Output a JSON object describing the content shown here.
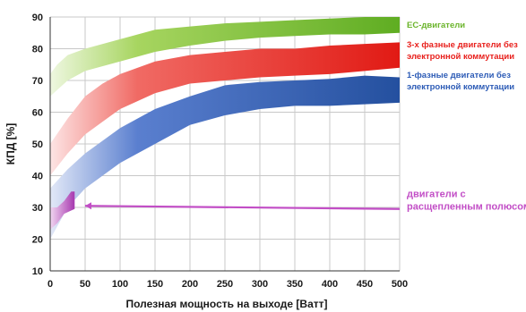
{
  "chart_data": {
    "type": "area",
    "xlabel": "Полезная мощность на выходе [Ватт]",
    "ylabel": "КПД [%]",
    "xlim": [
      0,
      500
    ],
    "ylim": [
      10,
      90
    ],
    "x_ticks": [
      0,
      50,
      100,
      150,
      200,
      250,
      300,
      350,
      400,
      450,
      500
    ],
    "y_ticks": [
      10,
      20,
      30,
      40,
      50,
      60,
      70,
      80,
      90
    ],
    "grid": true,
    "legend_position": "right",
    "series": [
      {
        "name": "EC-двигатели",
        "labels": [
          "EC-двигатели"
        ],
        "color": "#6ab42a",
        "upper": [
          [
            0,
            72
          ],
          [
            10,
            75
          ],
          [
            25,
            78
          ],
          [
            50,
            80
          ],
          [
            100,
            83
          ],
          [
            150,
            86
          ],
          [
            200,
            87
          ],
          [
            250,
            88
          ],
          [
            300,
            88.5
          ],
          [
            350,
            89
          ],
          [
            400,
            89.5
          ],
          [
            450,
            90
          ],
          [
            500,
            90
          ]
        ],
        "lower": [
          [
            0,
            65
          ],
          [
            10,
            67
          ],
          [
            25,
            70
          ],
          [
            50,
            73
          ],
          [
            100,
            76
          ],
          [
            150,
            79
          ],
          [
            200,
            81
          ],
          [
            250,
            82.5
          ],
          [
            300,
            83.5
          ],
          [
            350,
            84
          ],
          [
            400,
            84.5
          ],
          [
            450,
            84.5
          ],
          [
            500,
            85
          ]
        ]
      },
      {
        "name": "3-х фазные двигатели без электронной коммутации",
        "labels": [
          "3-х фазные двигатели без",
          "электронной коммутации"
        ],
        "color": "#e8201c",
        "upper": [
          [
            0,
            50
          ],
          [
            25,
            58
          ],
          [
            50,
            65
          ],
          [
            75,
            69
          ],
          [
            100,
            72
          ],
          [
            150,
            76
          ],
          [
            200,
            78
          ],
          [
            250,
            79
          ],
          [
            300,
            80
          ],
          [
            350,
            80
          ],
          [
            400,
            81
          ],
          [
            450,
            81.5
          ],
          [
            500,
            82
          ]
        ],
        "lower": [
          [
            0,
            40
          ],
          [
            25,
            47
          ],
          [
            50,
            53
          ],
          [
            75,
            57
          ],
          [
            100,
            61
          ],
          [
            150,
            66
          ],
          [
            200,
            69
          ],
          [
            250,
            70
          ],
          [
            300,
            71
          ],
          [
            350,
            71.5
          ],
          [
            400,
            72
          ],
          [
            450,
            73
          ],
          [
            500,
            74
          ]
        ]
      },
      {
        "name": "1-фазные двигатели без электронной коммутации",
        "labels": [
          "1-фазные двигатели без",
          "электронной коммутации"
        ],
        "color": "#2c5bb6",
        "upper": [
          [
            0,
            36
          ],
          [
            25,
            42
          ],
          [
            50,
            47
          ],
          [
            100,
            55
          ],
          [
            150,
            61
          ],
          [
            200,
            65
          ],
          [
            250,
            68.5
          ],
          [
            300,
            69.5
          ],
          [
            350,
            70
          ],
          [
            400,
            70.5
          ],
          [
            450,
            71.5
          ],
          [
            500,
            71
          ]
        ],
        "lower": [
          [
            0,
            20
          ],
          [
            25,
            30
          ],
          [
            50,
            36
          ],
          [
            100,
            44
          ],
          [
            150,
            50
          ],
          [
            200,
            56
          ],
          [
            250,
            59
          ],
          [
            300,
            61
          ],
          [
            350,
            62
          ],
          [
            400,
            62
          ],
          [
            450,
            62.5
          ],
          [
            500,
            63
          ]
        ]
      },
      {
        "name": "двигатели с расщепленным полюсом",
        "labels": [
          "двигатели  с",
          "расщепленным полюсом"
        ],
        "color": "#c24ec6",
        "upper": [
          [
            0,
            30
          ],
          [
            10,
            30
          ],
          [
            20,
            32
          ],
          [
            30,
            35
          ],
          [
            35,
            35
          ]
        ],
        "lower": [
          [
            0,
            23
          ],
          [
            10,
            25
          ],
          [
            20,
            28
          ],
          [
            30,
            29
          ],
          [
            35,
            29.5
          ]
        ],
        "line": [
          [
            50,
            30.5
          ],
          [
            500,
            29.5
          ]
        ]
      }
    ]
  }
}
